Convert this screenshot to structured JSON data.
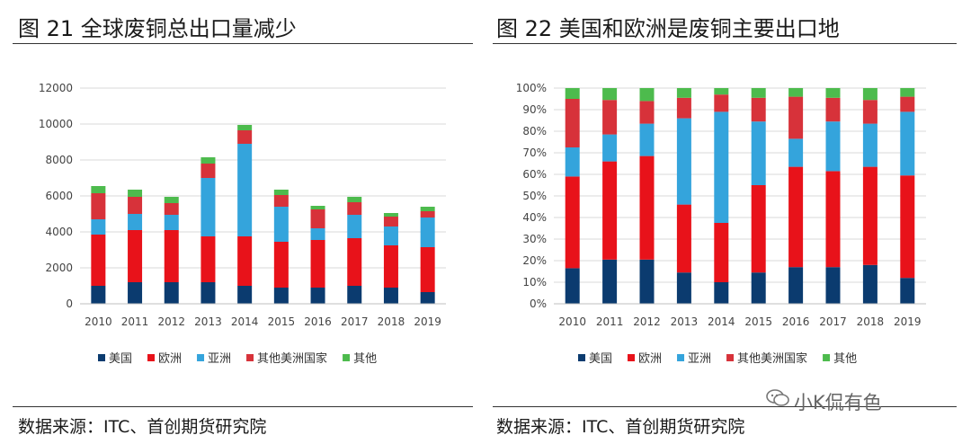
{
  "left_panel": {
    "title": "图 21 全球废铜总出口量减少",
    "source": "数据来源：ITC、首创期货研究院"
  },
  "right_panel": {
    "title": "图 22 美国和欧洲是废铜主要出口地",
    "source": "数据来源：ITC、首创期货研究院"
  },
  "watermark": {
    "text": "小K侃有色",
    "icon": "chat-bubble-icon"
  },
  "colors": {
    "美国": "#0b3b6f",
    "欧洲": "#e8121a",
    "亚洲": "#34a4dc",
    "其他美洲国家": "#d7323a",
    "其他": "#4dbb4d"
  },
  "chart_data": [
    {
      "type": "bar",
      "stacked": true,
      "title": "",
      "xlabel": "",
      "ylabel": "",
      "categories": [
        "2010",
        "2011",
        "2012",
        "2013",
        "2014",
        "2015",
        "2016",
        "2017",
        "2018",
        "2019"
      ],
      "ylim": [
        0,
        12000
      ],
      "yticks": [
        0,
        2000,
        4000,
        6000,
        8000,
        10000,
        12000
      ],
      "grid": true,
      "legend_position": "bottom",
      "series": [
        {
          "name": "美国",
          "values": [
            1000,
            1200,
            1200,
            1200,
            1000,
            900,
            900,
            1000,
            900,
            650
          ]
        },
        {
          "name": "欧洲",
          "values": [
            2850,
            2900,
            2900,
            2550,
            2750,
            2550,
            2650,
            2650,
            2350,
            2500
          ]
        },
        {
          "name": "亚洲",
          "values": [
            850,
            900,
            850,
            3250,
            5150,
            1950,
            650,
            1300,
            1050,
            1650
          ]
        },
        {
          "name": "其他美洲国家",
          "values": [
            1450,
            950,
            650,
            800,
            750,
            650,
            1050,
            700,
            550,
            350
          ]
        },
        {
          "name": "其他",
          "values": [
            400,
            400,
            350,
            350,
            300,
            300,
            200,
            300,
            200,
            250
          ]
        }
      ]
    },
    {
      "type": "bar",
      "stacked": true,
      "percent": true,
      "title": "",
      "xlabel": "",
      "ylabel": "",
      "categories": [
        "2010",
        "2011",
        "2012",
        "2013",
        "2014",
        "2015",
        "2016",
        "2017",
        "2018",
        "2019"
      ],
      "ylim": [
        0,
        100
      ],
      "yticks": [
        "0%",
        "10%",
        "20%",
        "30%",
        "40%",
        "50%",
        "60%",
        "70%",
        "80%",
        "90%",
        "100%"
      ],
      "grid": true,
      "legend_position": "bottom",
      "series": [
        {
          "name": "美国",
          "values": [
            16.5,
            20.5,
            20.5,
            14.5,
            10,
            14.5,
            17,
            17,
            18,
            12
          ]
        },
        {
          "name": "欧洲",
          "values": [
            42.5,
            45.5,
            48,
            31.5,
            27.5,
            40.5,
            46.5,
            44.5,
            45.5,
            47.5
          ]
        },
        {
          "name": "亚洲",
          "values": [
            13.5,
            12.5,
            15,
            40,
            51.5,
            29.5,
            13,
            23,
            20,
            29.5
          ]
        },
        {
          "name": "其他美洲国家",
          "values": [
            22.5,
            16,
            10.5,
            9.5,
            8,
            11,
            19.5,
            11,
            11,
            7
          ]
        },
        {
          "name": "其他",
          "values": [
            5,
            5.5,
            6,
            4.5,
            3,
            4.5,
            4,
            4.5,
            5.5,
            4
          ]
        }
      ]
    }
  ]
}
